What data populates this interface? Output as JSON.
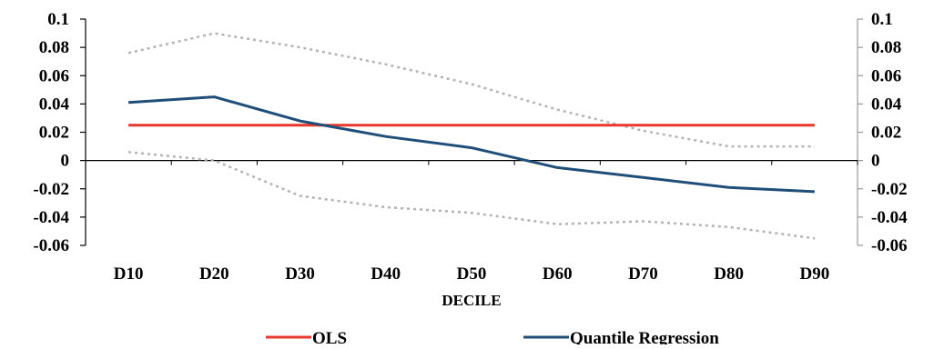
{
  "chart_data": {
    "type": "line",
    "title": "",
    "xlabel": "DECILE",
    "ylabel": "",
    "categories": [
      "D10",
      "D20",
      "D30",
      "D40",
      "D50",
      "D60",
      "D70",
      "D80",
      "D90"
    ],
    "ylim": [
      -0.06,
      0.1
    ],
    "yticks": [
      -0.06,
      -0.04,
      -0.02,
      0,
      0.02,
      0.04,
      0.06,
      0.08,
      0.1
    ],
    "ytick_labels": [
      "-0.06",
      "-0.04",
      "-0.02",
      "0",
      "0.02",
      "0.04",
      "0.06",
      "0.08",
      "0.1"
    ],
    "secondary_yaxis": true,
    "grid": false,
    "legend_position": "bottom",
    "series": [
      {
        "name": "OLS",
        "color": "#e8382b",
        "style": "solid",
        "in_legend": true,
        "values": [
          0.025,
          0.025,
          0.025,
          0.025,
          0.025,
          0.025,
          0.025,
          0.025,
          0.025
        ]
      },
      {
        "name": "Quantile Regression",
        "color": "#1f4e79",
        "style": "solid",
        "in_legend": true,
        "values": [
          0.041,
          0.045,
          0.028,
          0.017,
          0.009,
          -0.005,
          -0.012,
          -0.019,
          -0.022
        ]
      },
      {
        "name": "",
        "color": "#b3b3b3",
        "style": "dotted",
        "in_legend": false,
        "values": [
          0.076,
          0.09,
          0.08,
          0.068,
          0.054,
          0.036,
          0.021,
          0.01,
          0.01
        ]
      },
      {
        "name": "",
        "color": "#b3b3b3",
        "style": "dotted",
        "in_legend": false,
        "values": [
          0.006,
          0.0,
          -0.025,
          -0.033,
          -0.037,
          -0.045,
          -0.043,
          -0.047,
          -0.055
        ]
      }
    ]
  }
}
